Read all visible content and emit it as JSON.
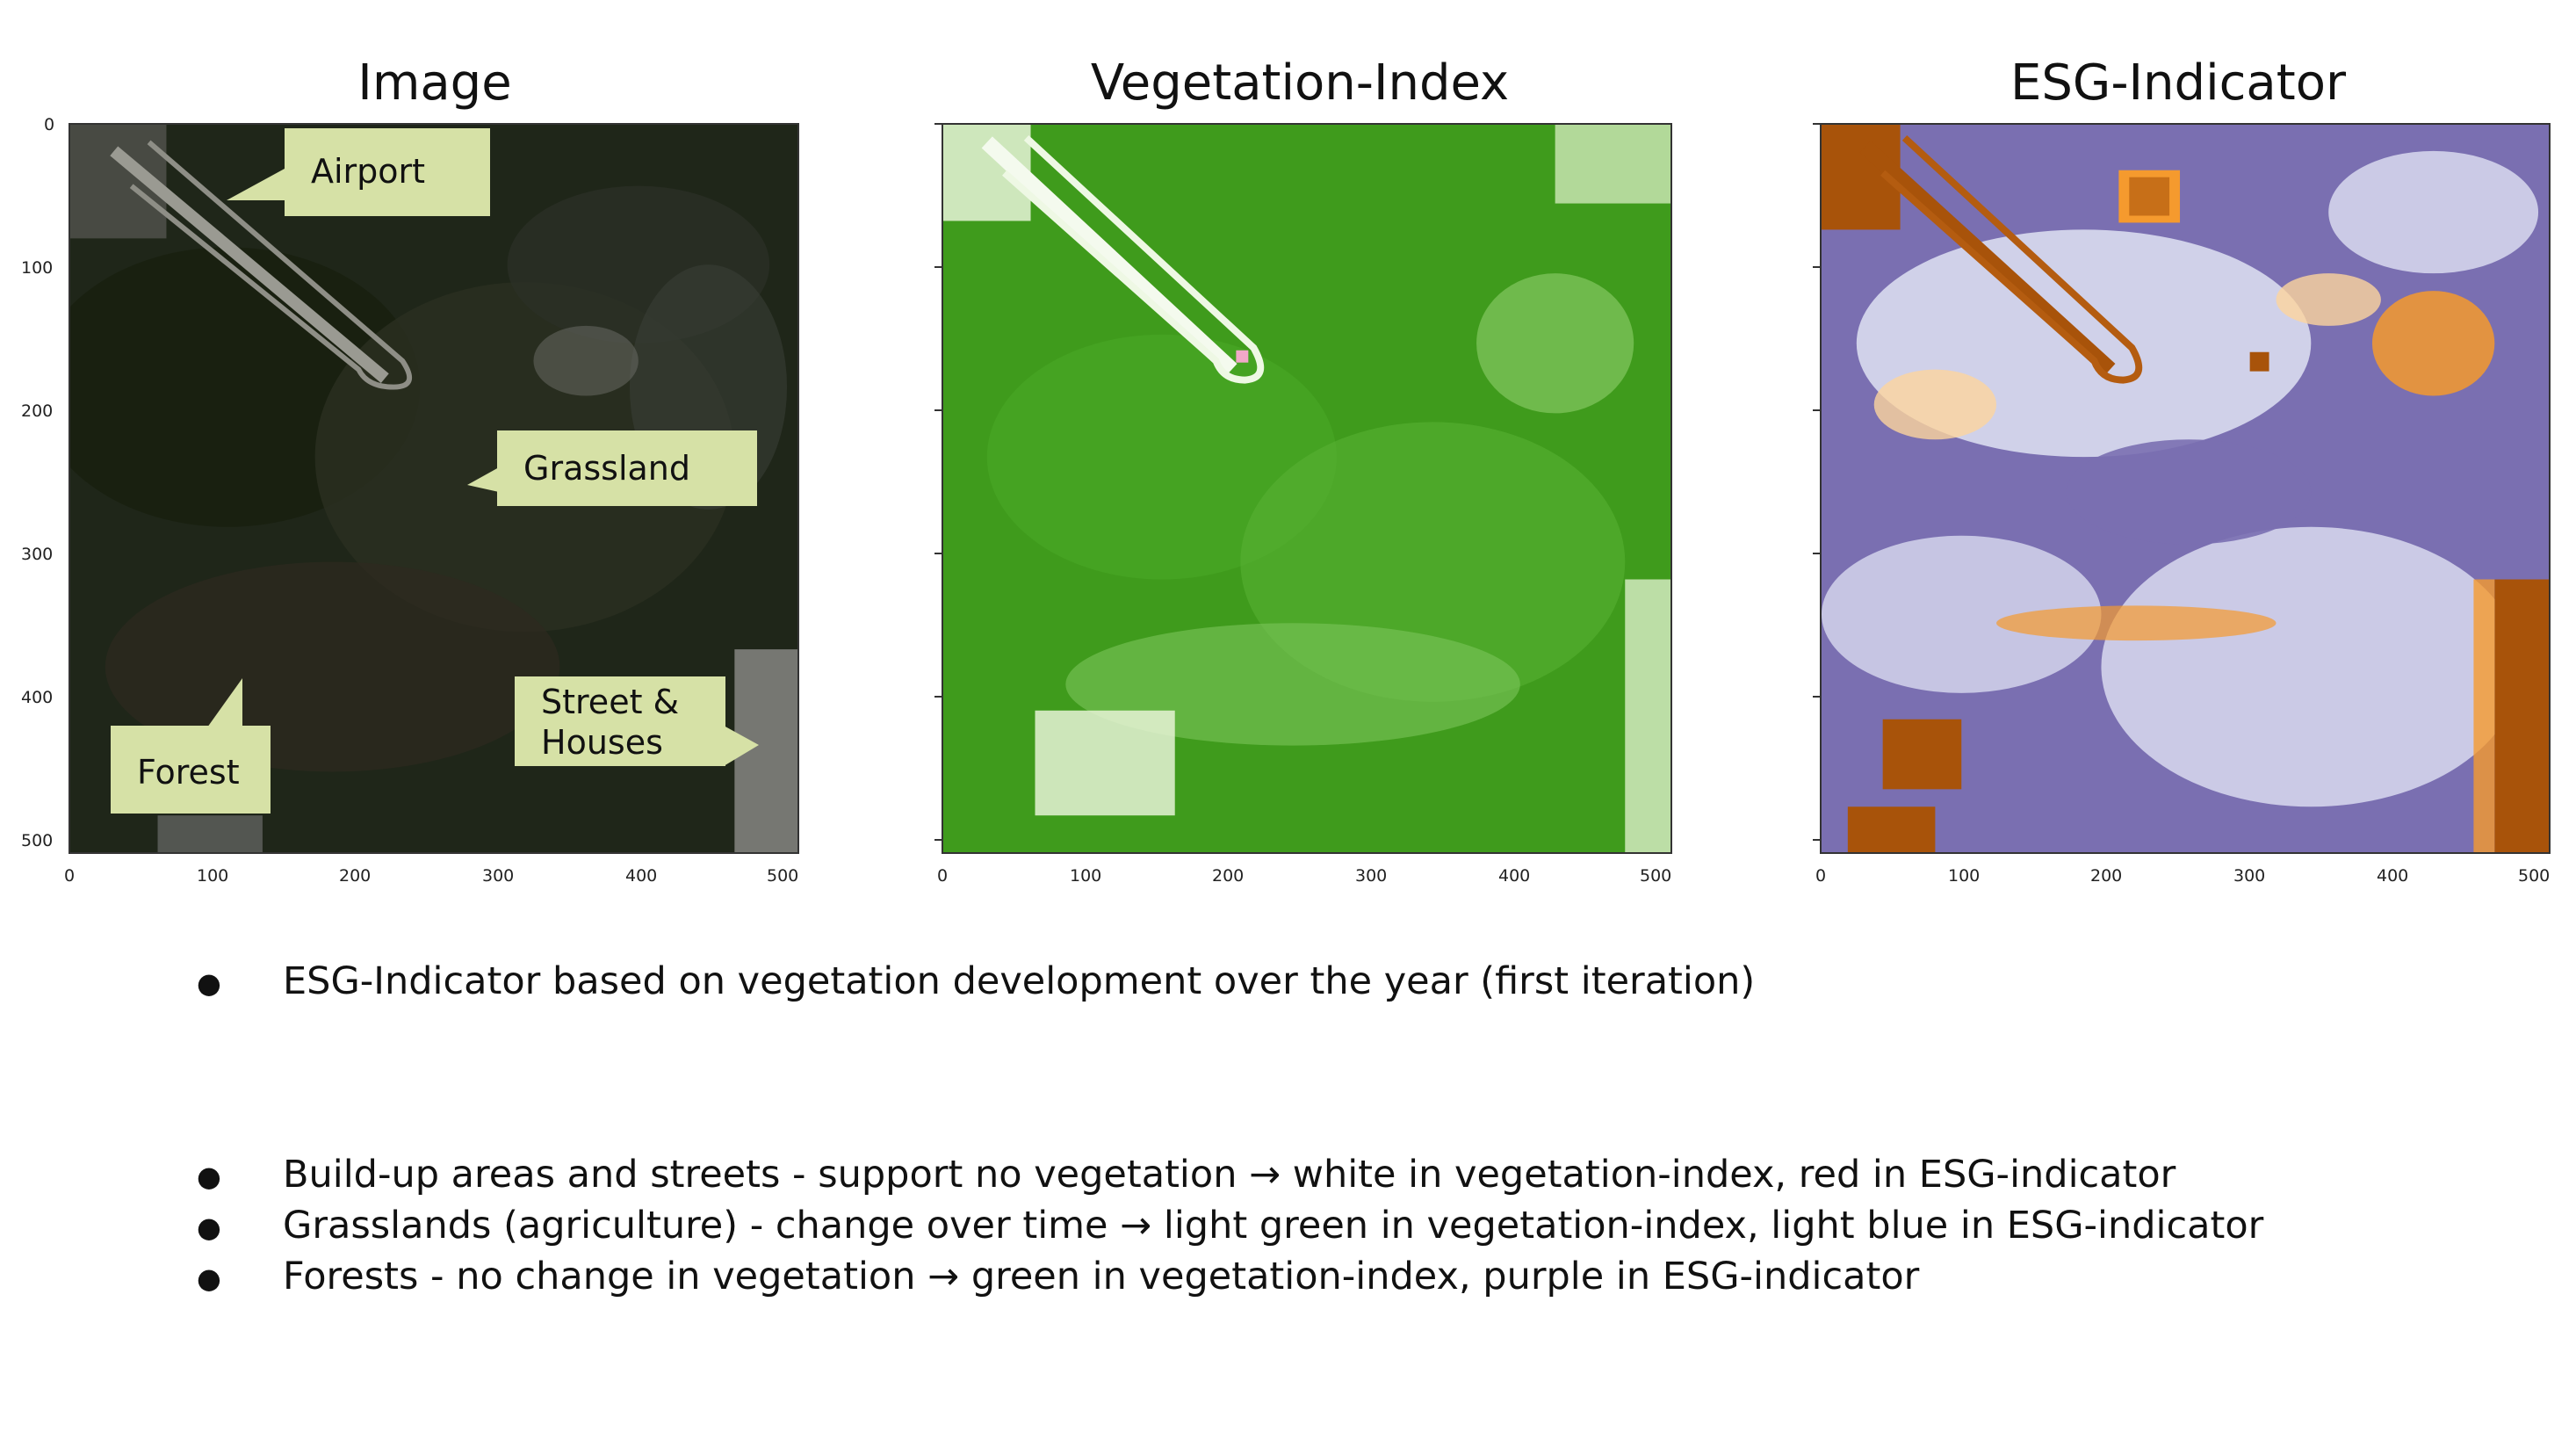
{
  "panels": [
    {
      "title": "Image"
    },
    {
      "title": "Vegetation-Index"
    },
    {
      "title": "ESG-Indicator"
    }
  ],
  "axes": {
    "y_ticks": [
      "0",
      "100",
      "200",
      "300",
      "400",
      "500"
    ],
    "x_ticks": [
      "0",
      "100",
      "200",
      "300",
      "400",
      "500"
    ]
  },
  "callouts": {
    "airport": "Airport",
    "grassland": "Grassland",
    "street_houses": "Street &\nHouses",
    "forest": "Forest"
  },
  "bullets_top": [
    "ESG-Indicator based on vegetation development over the year (first iteration)"
  ],
  "bullets_bottom": [
    "Build-up areas and streets - support no vegetation → white in vegetation-index, red in ESG-indicator",
    "Grasslands (agriculture) - change over time → light green in vegetation-index, light blue in ESG-indicator",
    "Forests - no change in vegetation → green in vegetation-index, purple in ESG-indicator"
  ],
  "bullet_symbol": "●",
  "colors": {
    "callout_bg": "#d6e1a6",
    "satellite_dark": "#1d2418",
    "veg_green": "#3f9b1c",
    "veg_light": "#a6d785",
    "esg_purple": "#7a6fb1",
    "esg_light_blue": "#d9dbf0",
    "esg_brown": "#a8530a",
    "esg_orange": "#f59a2e",
    "esg_peach": "#fdd49e"
  }
}
